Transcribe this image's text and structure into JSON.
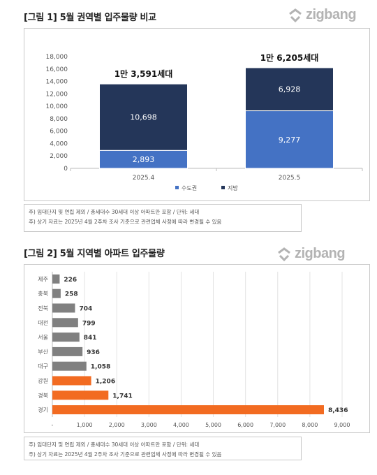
{
  "figure1": {
    "title": "[그림 1] 5월 권역별 입주물량 비교",
    "logo": "zigbang",
    "notes": [
      "주) 임대단지 및 연립 제외 / 총세대수 30세대 이상 아파트만 포함 / 단위: 세대",
      "주) 상기 자료는 2025년 4월 2주차 조사 기준으로 관련업체 사정에 따라 변경될 수 있음"
    ]
  },
  "figure2": {
    "title": "[그림 2] 5월 지역별 아파트 입주물량",
    "logo": "zigbang",
    "notes": [
      "주) 임대단지 및 연립 제외 / 총세대수 30세대 이상 아파트만 포함 / 단위: 세대",
      "주) 상기 자료는 2025년 4월 2주차 조사 기준으로 관련업체 사정에 따라 변경될 수 있음"
    ]
  },
  "chart_data": [
    {
      "type": "bar",
      "stacked": true,
      "categories": [
        "2025.4",
        "2025.5"
      ],
      "series": [
        {
          "name": "수도권",
          "values": [
            2893,
            9277
          ],
          "labels": [
            "2,893",
            "9,277"
          ],
          "color": "#4472c4"
        },
        {
          "name": "지방",
          "values": [
            10698,
            6928
          ],
          "labels": [
            "10,698",
            "6,928"
          ],
          "color": "#243659"
        }
      ],
      "totals": [
        "1만 3,591세대",
        "1만 6,205세대"
      ],
      "ylim": [
        0,
        18000
      ],
      "yticks": [
        "0",
        "2,000",
        "4,000",
        "6,000",
        "8,000",
        "10,000",
        "12,000",
        "14,000",
        "16,000",
        "18,000"
      ],
      "legend_position": "bottom",
      "grid": false
    },
    {
      "type": "bar",
      "orientation": "horizontal",
      "categories": [
        "제주",
        "충북",
        "전북",
        "대전",
        "서울",
        "부산",
        "대구",
        "강원",
        "경북",
        "경기"
      ],
      "values": [
        226,
        258,
        704,
        799,
        841,
        936,
        1058,
        1206,
        1741,
        8436
      ],
      "labels": [
        "226",
        "258",
        "704",
        "799",
        "841",
        "936",
        "1,058",
        "1,206",
        "1,741",
        "8,436"
      ],
      "bar_colors": [
        "#808080",
        "#808080",
        "#808080",
        "#808080",
        "#808080",
        "#808080",
        "#808080",
        "#f26b21",
        "#f26b21",
        "#f26b21"
      ],
      "xlim": [
        0,
        9000
      ],
      "xticks": [
        "-",
        "1,000",
        "2,000",
        "3,000",
        "4,000",
        "5,000",
        "6,000",
        "7,000",
        "8,000",
        "9,000"
      ],
      "grid": true
    }
  ]
}
